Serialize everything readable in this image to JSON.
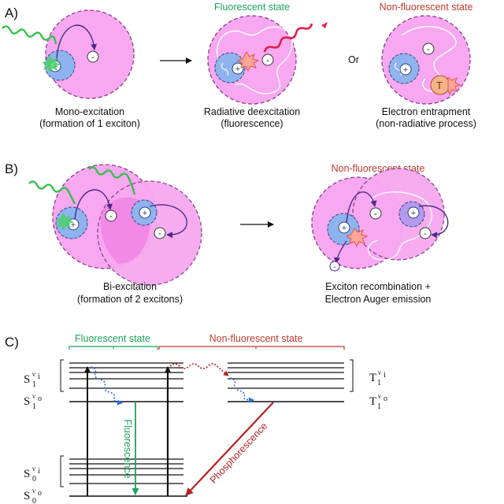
{
  "panels": {
    "a": "A)",
    "b": "B)",
    "c": "C)"
  },
  "section_a": {
    "headers": {
      "fluorescent": "Fluorescent state",
      "non_fluorescent": "Non-fluorescent state"
    },
    "or_label": "Or",
    "captions": {
      "mono_line1": "Mono-excitation",
      "mono_line2": "(formation of 1 exciton)",
      "rad_line1": "Radiative deexcitation",
      "rad_line2": "(fluorescence)",
      "trap_line1": "Electron entrapment",
      "trap_line2": "(non-radiative process)"
    },
    "trap_symbol": "T"
  },
  "section_b": {
    "header_non_fluorescent": "Non-fluorescent state",
    "captions": {
      "bi_line1": "Bi-excitation",
      "bi_line2": "(formation of 2 excitons)",
      "auger_line1": "Exciton recombination +",
      "auger_line2": "Electron Auger emission"
    }
  },
  "section_c": {
    "headers": {
      "fluorescent": "Fluorescent state",
      "non_fluorescent": "Non-fluorescent state"
    },
    "arrows": {
      "fluorescence": "Fluorescence",
      "phosphorescence": "Phosphorescence"
    },
    "levels": {
      "s1": {
        "base": "S",
        "sub": "1",
        "sup": "ν",
        "supsub": "i"
      },
      "s1_0": {
        "base": "S",
        "sub": "1",
        "sup": "ν",
        "supsub": "o"
      },
      "s0": {
        "base": "S",
        "sub": "0",
        "sup": "ν",
        "supsub": "i"
      },
      "s0_0": {
        "base": "S",
        "sub": "0",
        "sup": "ν",
        "supsub": "o"
      },
      "t1": {
        "base": "T",
        "sub": "1",
        "sup": "ν",
        "supsub": "i"
      },
      "t1_0": {
        "base": "T",
        "sub": "1",
        "sup": "ν",
        "supsub": "o"
      }
    }
  },
  "symbols": {
    "hole": "+",
    "electron": "-"
  },
  "colors": {
    "particle_pink": "#f7a8f0",
    "particle_dash": "#8a3a8a",
    "exciton_blue": "#8fb3ee",
    "green_header": "#1aa35a",
    "red_header": "#c0392b",
    "fluorescence_arrow": "#1aa35a",
    "phosphorescence_arrow": "#b22222",
    "wavy_green": "#35c04a",
    "wavy_red": "#e0204a",
    "trap_orange": "#f4b48a"
  }
}
